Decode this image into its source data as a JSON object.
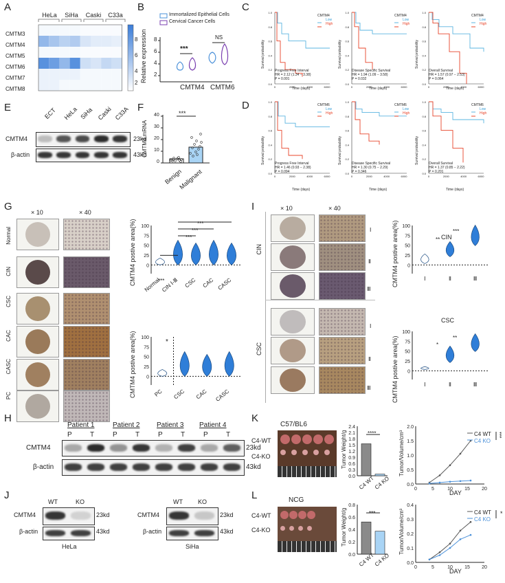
{
  "panels": [
    "A",
    "B",
    "C",
    "D",
    "E",
    "F",
    "G",
    "H",
    "I",
    "J",
    "K",
    "L"
  ],
  "A": {
    "col_labels": [
      "HeLa",
      "SiHa",
      "Caski",
      "C33a"
    ],
    "row_labels": [
      "CMTM3",
      "CMTM4",
      "CMTM5",
      "CMTM6",
      "CMTM7",
      "CMTM8"
    ],
    "colorbar_ticks": [
      "8",
      "6",
      "4",
      "2"
    ],
    "heat": [
      [
        0.05,
        0.05,
        0.05,
        0.05,
        0.03,
        0.03,
        0.03,
        0.03
      ],
      [
        0.55,
        0.45,
        0.35,
        0.4,
        0.2,
        0.15,
        0.15,
        0.12
      ],
      [
        0.05,
        0.05,
        0.05,
        0.05,
        0.03,
        0.03,
        0.03,
        0.03
      ],
      [
        0.85,
        0.75,
        0.55,
        0.85,
        0.25,
        0.2,
        0.3,
        0.25
      ],
      [
        0.1,
        0.1,
        0.1,
        0.1,
        0.05,
        0.05,
        0.05,
        0.05
      ],
      [
        0.1,
        0.1,
        0.05,
        0.05,
        0.05,
        0.05,
        0.05,
        0.05
      ]
    ]
  },
  "B": {
    "legend": [
      "Immortalized Epithelial Cells",
      "Cervical Cancer Cells"
    ],
    "ylabel": "Relative expression",
    "yticks": [
      "8",
      "6",
      "4",
      "2"
    ],
    "xcats": [
      "CMTM4",
      "CMTM6"
    ],
    "sig": [
      "***",
      "NS"
    ],
    "colors": {
      "epi": "#4a90d9",
      "cancer": "#7a3fb0"
    }
  },
  "C": {
    "plots": [
      {
        "legend_title": "CMTM4",
        "stats": [
          "Progress Free Interval",
          "HR = 2.12 (1.34 − 3.38)",
          "P = 0.001"
        ]
      },
      {
        "legend_title": "CMTM4",
        "stats": [
          "Disease Specific Survival",
          "HR = 1.94 (1.09 − 3.58)",
          "P = 0.032"
        ]
      },
      {
        "legend_title": "CMTM4",
        "stats": [
          "Overall Survival",
          "HR = 1.57 (0.97 − 2.53)",
          "P = 0.064"
        ]
      }
    ]
  },
  "D": {
    "plots": [
      {
        "legend_title": "CMTM6",
        "stats": [
          "Progress Free Interval",
          "HR = 1.46 (0.93 − 2.38)",
          "P = 0.094"
        ]
      },
      {
        "legend_title": "CMTM6",
        "stats": [
          "Disease Specific Survival",
          "HR = 1.30 (0.75 − 2.29)",
          "P = 0.346"
        ]
      },
      {
        "legend_title": "CMTM6",
        "stats": [
          "Overall Survival",
          "HR = 1.37 (0.85 − 2.22)",
          "P = 0.201"
        ]
      }
    ],
    "legend_low": "Low",
    "legend_high": "High",
    "ylabel": "Survival probability",
    "xlabel": "Time (days)",
    "xticks": [
      "0",
      "2000",
      "4000",
      "6000"
    ],
    "yticks": [
      "1.0",
      "0.9",
      "0.8",
      "0.7",
      "0.6",
      "0.5",
      "0.4",
      "0.3",
      "0.2",
      "0.1",
      "0.0"
    ]
  },
  "E": {
    "lanes": [
      "ECT",
      "HeLa",
      "SiHa",
      "Caski",
      "C33A"
    ],
    "rows": [
      {
        "name": "CMTM4",
        "size": "23kd",
        "intensity": [
          0.25,
          0.75,
          0.8,
          0.95,
          0.9
        ]
      },
      {
        "name": "β-actin",
        "size": "43kd",
        "intensity": [
          0.9,
          0.9,
          0.9,
          0.9,
          0.9
        ]
      }
    ]
  },
  "F": {
    "ylabel": "CMTM4 mRNA",
    "yticks": [
      "40",
      "30",
      "20",
      "10",
      "0"
    ],
    "cats": [
      "Benign",
      "Malignant"
    ],
    "sig": "***",
    "bars": [
      3,
      13
    ]
  },
  "G": {
    "mag": [
      "× 10",
      "× 40"
    ],
    "rows": [
      "Normal",
      "CIN",
      "CSC",
      "CAC",
      "CASC",
      "PC"
    ],
    "top": {
      "ylabel": "CMTM4 postive area(%)",
      "yticks": [
        "100",
        "75",
        "50",
        "25",
        "0"
      ],
      "cats": [
        "Normal",
        "CIN Ⅰ-Ⅲ",
        "CSC",
        "CAC",
        "CASC"
      ],
      "sig": [
        "***",
        "***",
        "***",
        "***"
      ]
    },
    "bottom": {
      "ylabel": "CMTM4 postive area(%)",
      "yticks": [
        "100",
        "75",
        "50",
        "25",
        "0"
      ],
      "cats": [
        "PC",
        "CSC",
        "CAC",
        "CASC"
      ],
      "sig": [
        "*"
      ]
    }
  },
  "H": {
    "patients": [
      "Patient 1",
      "Patient 2",
      "Patient 3",
      "Patient 4"
    ],
    "pt": [
      "P",
      "T",
      "P",
      "T",
      "P",
      "T",
      "P",
      "T"
    ],
    "rows": [
      {
        "name": "CMTM4",
        "size": "23kd",
        "intensity": [
          0.35,
          0.95,
          0.45,
          0.9,
          0.3,
          0.85,
          0.35,
          0.7
        ]
      },
      {
        "name": "β-actin",
        "size": "43kd",
        "intensity": [
          0.85,
          0.85,
          0.85,
          0.85,
          0.85,
          0.85,
          0.85,
          0.85
        ]
      }
    ]
  },
  "I": {
    "mag": [
      "× 10",
      "× 40"
    ],
    "groups": [
      "CIN",
      "CSC"
    ],
    "grades": [
      "Ⅰ",
      "Ⅱ",
      "Ⅲ"
    ],
    "top": {
      "title": "CIN",
      "ylabel": "CMTM4 postive area(%)",
      "yticks": [
        "100",
        "75",
        "50",
        "25",
        "0"
      ],
      "cats": [
        "Ⅰ",
        "Ⅱ",
        "Ⅲ"
      ],
      "sig": [
        "**",
        "***"
      ]
    },
    "bottom": {
      "title": "CSC",
      "ylabel": "CMTM4 postive area(%)",
      "yticks": [
        "100",
        "75",
        "50",
        "25",
        "0"
      ],
      "cats": [
        "Ⅰ",
        "Ⅱ",
        "Ⅲ"
      ],
      "sig": [
        "*",
        "**"
      ]
    }
  },
  "J": {
    "blots": [
      {
        "cell": "HeLa",
        "lanes": [
          "WT",
          "KO"
        ],
        "rows": [
          {
            "name": "CMTM4",
            "size": "23kd",
            "intensity": [
              0.9,
              0.15
            ]
          },
          {
            "name": "β-actin",
            "size": "43kd",
            "intensity": [
              0.85,
              0.85
            ]
          }
        ]
      },
      {
        "cell": "SiHa",
        "lanes": [
          "WT",
          "KO"
        ],
        "rows": [
          {
            "name": "CMTM4",
            "size": "23kd",
            "intensity": [
              0.9,
              0.2
            ]
          },
          {
            "name": "β-actin",
            "size": "43kd",
            "intensity": [
              0.85,
              0.85
            ]
          }
        ]
      }
    ]
  },
  "K": {
    "model": "C57/BL6",
    "rows": [
      "C4-WT",
      "C4-KO"
    ],
    "bar": {
      "ylabel": "Tumor Weight/g",
      "yticks": [
        "2.4",
        "2.1",
        "1.8",
        "1.5",
        "1.2",
        "0.9",
        "0.6",
        "0.3",
        "0.0"
      ],
      "cats": [
        "C4 WT",
        "C4 KO"
      ],
      "sig": "****",
      "values": [
        1.55,
        0.08
      ]
    },
    "line": {
      "ylabel": "Tumor/Volume/cm³",
      "yticks": [
        "2.0",
        "1.5",
        "1.0",
        "0.5",
        "0.0"
      ],
      "xlabel": "DAY",
      "xticks": [
        "0",
        "5",
        "10",
        "15",
        "20"
      ],
      "series": [
        {
          "name": "C4 WT",
          "x": [
            4,
            7,
            10,
            13,
            16
          ],
          "y": [
            0.05,
            0.3,
            0.65,
            1.05,
            1.5
          ]
        },
        {
          "name": "C4 KO",
          "x": [
            4,
            7,
            10,
            13,
            16
          ],
          "y": [
            0.02,
            0.05,
            0.08,
            0.1,
            0.12
          ]
        }
      ],
      "sig": "***"
    }
  },
  "L": {
    "model": "NCG",
    "rows": [
      "C4-WT",
      "C4-KO"
    ],
    "bar": {
      "ylabel": "Tumor Weight/g",
      "yticks": [
        "0.8",
        "0.6",
        "0.4",
        "0.2",
        "0.0"
      ],
      "cats": [
        "C4 WT",
        "C4 KO"
      ],
      "sig": "***",
      "values": [
        0.52,
        0.37
      ]
    },
    "line": {
      "ylabel": "Tumor/Volume/cm³",
      "yticks": [
        "0.4",
        "0.3",
        "0.2",
        "0.1",
        "0.0"
      ],
      "xlabel": "DAY",
      "xticks": [
        "0",
        "5",
        "10",
        "15",
        "20"
      ],
      "series": [
        {
          "name": "C4 WT",
          "x": [
            4,
            7,
            10,
            13,
            16
          ],
          "y": [
            0.02,
            0.07,
            0.13,
            0.22,
            0.28
          ]
        },
        {
          "name": "C4 KO",
          "x": [
            4,
            7,
            10,
            13,
            16
          ],
          "y": [
            0.02,
            0.05,
            0.1,
            0.16,
            0.19
          ]
        }
      ],
      "sig": "*"
    }
  }
}
